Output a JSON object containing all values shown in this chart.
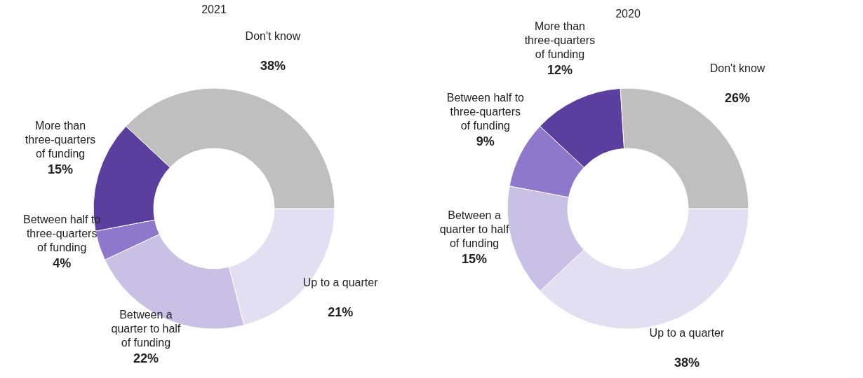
{
  "chart_data": [
    {
      "type": "donut",
      "title": "2021",
      "categories": [
        "Up to a quarter",
        "Between a quarter to half of funding",
        "Between half to three-quarters of funding",
        "More than three-quarters of funding",
        "Don't know"
      ],
      "values": [
        21,
        22,
        4,
        15,
        38
      ],
      "value_labels": [
        "21%",
        "22%",
        "4%",
        "15%",
        "38%"
      ],
      "colors": [
        "#e2dff2",
        "#c9c0e6",
        "#8e78cb",
        "#5a3f9f",
        "#bfbfbf"
      ]
    },
    {
      "type": "donut",
      "title": "2020",
      "categories": [
        "Up to a quarter",
        "Between a quarter to half of funding",
        "Between half to three-quarters of funding",
        "More than three-quarters of funding",
        "Don't know"
      ],
      "values": [
        38,
        15,
        9,
        12,
        26
      ],
      "value_labels": [
        "38%",
        "15%",
        "9%",
        "12%",
        "26%"
      ],
      "colors": [
        "#e2dff2",
        "#c9c0e6",
        "#8e78cb",
        "#5a3f9f",
        "#bfbfbf"
      ]
    }
  ]
}
